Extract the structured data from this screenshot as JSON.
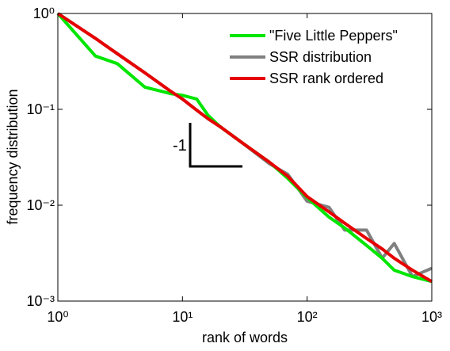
{
  "chart_data": {
    "type": "line",
    "xlabel": "rank of words",
    "ylabel": "frequency distribution",
    "log_x": true,
    "log_y": true,
    "legend": "upper right",
    "annotation": "-1",
    "x": [
      1,
      2,
      3,
      5,
      8,
      10,
      13,
      16,
      20,
      30,
      50,
      70,
      100,
      150,
      200,
      300,
      400,
      500,
      700,
      1000
    ],
    "series": [
      {
        "name": "\"Five Little Peppers\"",
        "color": "#00e600",
        "values": [
          1,
          0.36,
          0.3,
          0.17,
          0.146,
          0.14,
          0.128,
          0.087,
          0.066,
          0.045,
          0.028,
          0.019,
          0.012,
          0.0075,
          0.0058,
          0.0038,
          0.0028,
          0.0021,
          0.0018,
          0.0016
        ]
      },
      {
        "name": "SSR distribution",
        "color": "#808080",
        "values": [
          1,
          0.55,
          0.38,
          0.24,
          0.155,
          0.128,
          0.098,
          0.08,
          0.066,
          0.045,
          0.027,
          0.021,
          0.011,
          0.0095,
          0.0055,
          0.0055,
          0.0028,
          0.004,
          0.0018,
          0.0022
        ]
      },
      {
        "name": "SSR rank ordered",
        "color": "#e60000",
        "values": [
          1,
          0.55,
          0.38,
          0.24,
          0.155,
          0.128,
          0.098,
          0.08,
          0.066,
          0.045,
          0.028,
          0.02,
          0.0123,
          0.0085,
          0.0065,
          0.0045,
          0.0035,
          0.0028,
          0.0021,
          0.0016
        ]
      }
    ],
    "xlim": [
      1,
      1000
    ],
    "xticks": [
      {
        "value": 1,
        "label": "10⁰"
      },
      {
        "value": 10,
        "label": "10¹"
      },
      {
        "value": 100,
        "label": "10²"
      },
      {
        "value": 1000,
        "label": "10³"
      }
    ],
    "ylim": [
      0.001,
      1
    ],
    "yticks": [
      {
        "value": 0.001,
        "label": "10⁻³"
      },
      {
        "value": 0.01,
        "label": "10⁻²"
      },
      {
        "value": 0.1,
        "label": "10⁻¹"
      },
      {
        "value": 1,
        "label": "10⁰"
      }
    ]
  }
}
